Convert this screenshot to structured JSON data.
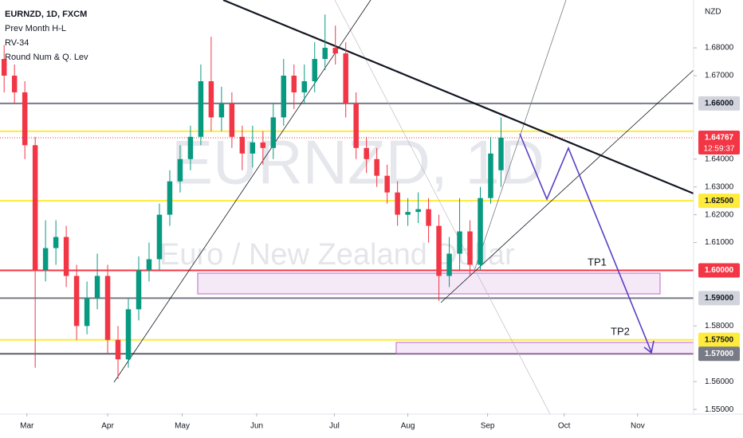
{
  "chart_data": {
    "type": "candlestick",
    "title": "EURNZD, 1D, FXCM",
    "indicators": [
      "Prev Month H-L",
      "RV-34",
      "Round Num & Q. Lev"
    ],
    "watermark": "EURNZD, 1D",
    "watermark_subtitle": "Euro / New Zealand Dollar",
    "currency": "NZD",
    "up_color": "#089981",
    "down_color": "#f23645",
    "open": [
      1.676,
      1.67,
      1.664,
      1.645,
      1.6,
      1.608,
      1.612,
      1.598,
      1.58,
      1.59,
      1.598,
      1.575,
      1.568,
      1.586,
      1.6,
      1.604,
      1.62,
      1.632,
      1.64,
      1.648,
      1.668,
      1.655,
      1.66,
      1.648,
      1.642,
      1.646,
      1.644,
      1.655,
      1.67,
      1.664,
      1.668,
      1.676,
      1.68,
      1.678,
      1.66,
      1.644,
      1.64,
      1.634,
      1.628,
      1.62,
      1.621,
      1.622,
      1.616,
      1.598,
      1.606,
      1.614,
      1.602,
      1.626,
      1.636
    ],
    "high": [
      1.681,
      1.674,
      1.668,
      1.648,
      1.618,
      1.618,
      1.616,
      1.602,
      1.596,
      1.606,
      1.602,
      1.58,
      1.59,
      1.605,
      1.61,
      1.624,
      1.636,
      1.645,
      1.652,
      1.674,
      1.684,
      1.666,
      1.664,
      1.652,
      1.652,
      1.65,
      1.66,
      1.676,
      1.674,
      1.674,
      1.682,
      1.692,
      1.688,
      1.682,
      1.664,
      1.648,
      1.644,
      1.638,
      1.632,
      1.626,
      1.628,
      1.626,
      1.62,
      1.612,
      1.626,
      1.618,
      1.63,
      1.648,
      1.655
    ],
    "low": [
      1.664,
      1.66,
      1.64,
      1.565,
      1.596,
      1.602,
      1.594,
      1.575,
      1.577,
      1.586,
      1.57,
      1.561,
      1.565,
      1.582,
      1.596,
      1.6,
      1.616,
      1.628,
      1.636,
      1.645,
      1.65,
      1.65,
      1.644,
      1.636,
      1.637,
      1.638,
      1.64,
      1.652,
      1.658,
      1.66,
      1.664,
      1.672,
      1.674,
      1.655,
      1.64,
      1.635,
      1.63,
      1.624,
      1.616,
      1.616,
      1.617,
      1.61,
      1.589,
      1.594,
      1.6,
      1.598,
      1.6,
      1.624,
      1.63
    ],
    "close": [
      1.67,
      1.664,
      1.645,
      1.6,
      1.608,
      1.612,
      1.598,
      1.58,
      1.59,
      1.598,
      1.575,
      1.568,
      1.586,
      1.6,
      1.604,
      1.62,
      1.632,
      1.64,
      1.648,
      1.668,
      1.655,
      1.66,
      1.648,
      1.642,
      1.646,
      1.644,
      1.655,
      1.67,
      1.664,
      1.668,
      1.676,
      1.68,
      1.678,
      1.66,
      1.644,
      1.64,
      1.634,
      1.628,
      1.62,
      1.621,
      1.622,
      1.616,
      1.598,
      1.606,
      1.614,
      1.602,
      1.626,
      1.642,
      1.64767
    ],
    "xlim": [
      -0.4,
      66.6
    ],
    "xticks": [
      {
        "value": 2.2,
        "label": "Mar"
      },
      {
        "value": 10,
        "label": "Apr"
      },
      {
        "value": 17.2,
        "label": "May"
      },
      {
        "value": 24.4,
        "label": "Jun"
      },
      {
        "value": 31.9,
        "label": "Jul"
      },
      {
        "value": 39,
        "label": "Aug"
      },
      {
        "value": 46.7,
        "label": "Sep"
      },
      {
        "value": 54.1,
        "label": "Oct"
      },
      {
        "value": 61.2,
        "label": "Nov"
      }
    ],
    "ylim": [
      1.5486,
      1.6972
    ],
    "yticks": [
      {
        "value": 1.55,
        "label": "1.55000"
      },
      {
        "value": 1.56,
        "label": "1.56000"
      },
      {
        "value": 1.58,
        "label": "1.58000"
      },
      {
        "value": 1.61,
        "label": "1.61000"
      },
      {
        "value": 1.62,
        "label": "1.62000"
      },
      {
        "value": 1.63,
        "label": "1.63000"
      },
      {
        "value": 1.64,
        "label": "1.64000"
      },
      {
        "value": 1.67,
        "label": "1.67000"
      },
      {
        "value": 1.68,
        "label": "1.68000"
      }
    ],
    "levels": [
      {
        "value": 1.66,
        "label": "1.66000",
        "color": "#787b86",
        "label_bg": "#d1d4dc",
        "label_color": "#131722"
      },
      {
        "value": 1.65,
        "color": "#ffeb3b"
      },
      {
        "value": 1.625,
        "label": "1.62500",
        "color": "#ffeb3b",
        "label_bg": "#ffeb3b",
        "label_color": "#131722"
      },
      {
        "value": 1.6,
        "label": "1.60000",
        "color": "#f23645",
        "label_bg": "#f23645",
        "label_color": "#ffffff"
      },
      {
        "value": 1.59,
        "label": "1.59000",
        "color": "#787b86",
        "label_bg": "#d1d4dc",
        "label_color": "#131722"
      },
      {
        "value": 1.575,
        "label": "1.57500",
        "color": "#ffeb3b",
        "label_bg": "#ffeb3b",
        "label_color": "#131722"
      },
      {
        "value": 1.57,
        "label": "1.57000",
        "color": "#5d606b",
        "label_bg": "#787b86",
        "label_color": "#ffffff"
      }
    ],
    "current_price": {
      "value": 1.64767,
      "countdown": "12:59:37",
      "color": "#f23645"
    },
    "annotations": [
      "TP1",
      "TP2"
    ]
  }
}
